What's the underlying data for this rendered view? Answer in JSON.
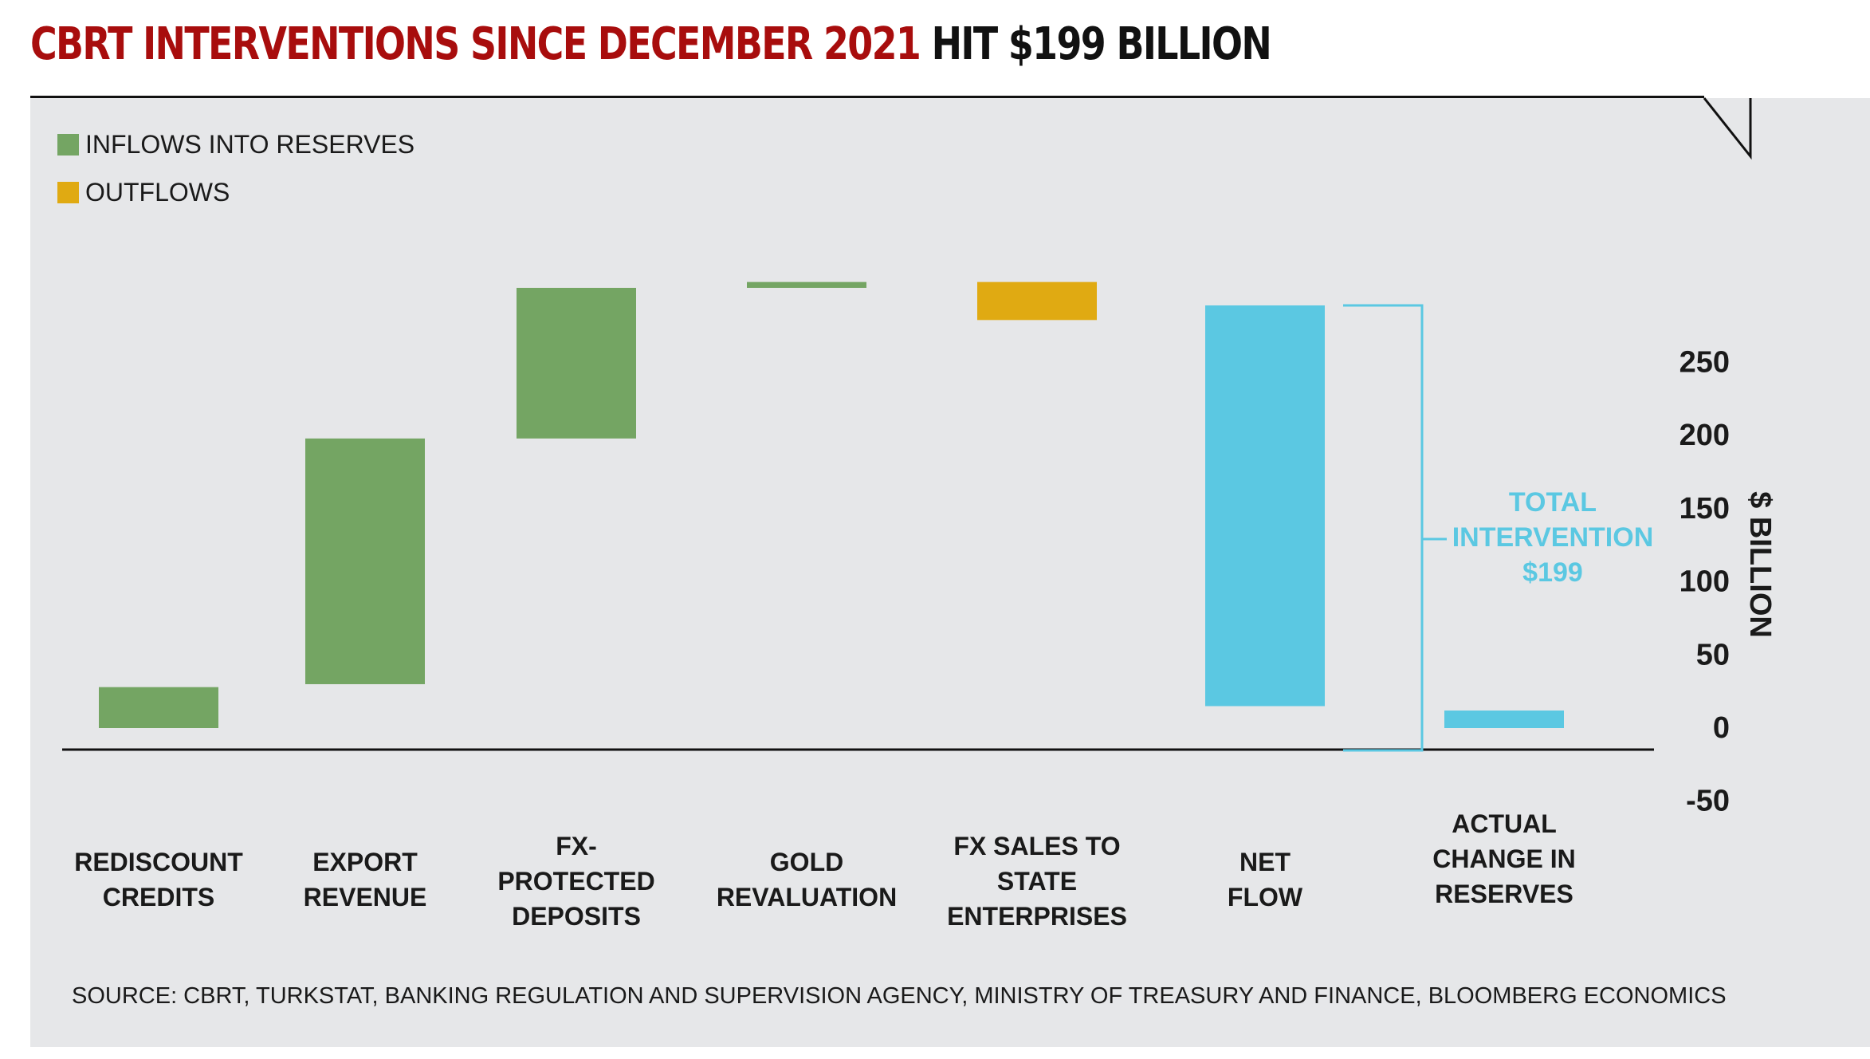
{
  "header": {
    "title_red": "CBRT INTERVENTIONS SINCE DECEMBER 2021",
    "title_black": "HIT $199 BILLION"
  },
  "legend": [
    {
      "label": "INFLOWS INTO RESERVES",
      "color": "#74a563"
    },
    {
      "label": "OUTFLOWS",
      "color": "#e0aa12"
    }
  ],
  "source": "SOURCE: CBRT, TURKSTAT, BANKING REGULATION AND SUPERVISION AGENCY, MINISTRY OF TREASURY AND FINANCE, BLOOMBERG ECONOMICS",
  "chart_data": {
    "type": "bar",
    "subtype": "waterfall",
    "ylabel": "$ BILLION",
    "ylim": [
      -50,
      290
    ],
    "yticks": [
      250,
      200,
      150,
      100,
      50,
      0,
      -50
    ],
    "axis_side": "right",
    "grid": false,
    "legend_position": "top-left",
    "categories": [
      [
        "REDISCOUNT",
        "CREDITS"
      ],
      [
        "EXPORT",
        "REVENUE"
      ],
      [
        "FX-",
        "PROTECTED",
        "DEPOSITS"
      ],
      [
        "GOLD",
        "REVALUATION"
      ],
      [
        "FX SALES TO",
        "STATE",
        "ENTERPRISES"
      ],
      [
        "NET",
        "FLOW"
      ],
      [
        "ACTUAL",
        "CHANGE IN",
        "RESERVES"
      ]
    ],
    "bars": [
      {
        "start": 0,
        "end": 28,
        "kind": "inflow"
      },
      {
        "start": 30,
        "end": 198,
        "kind": "inflow"
      },
      {
        "start": 198,
        "end": 301,
        "kind": "inflow"
      },
      {
        "start": 301,
        "end": 305,
        "kind": "inflow"
      },
      {
        "start": 279,
        "end": 305,
        "kind": "outflow"
      },
      {
        "start": 15,
        "end": 289,
        "kind": "total"
      },
      {
        "start": 0,
        "end": 12,
        "kind": "total"
      }
    ],
    "colors": {
      "inflow": "#74a563",
      "outflow": "#e0aa12",
      "total": "#5bc8e2"
    },
    "annotation": {
      "lines": [
        "TOTAL",
        "INTERVENTION",
        "$199"
      ],
      "color": "#5bc8e2"
    }
  }
}
